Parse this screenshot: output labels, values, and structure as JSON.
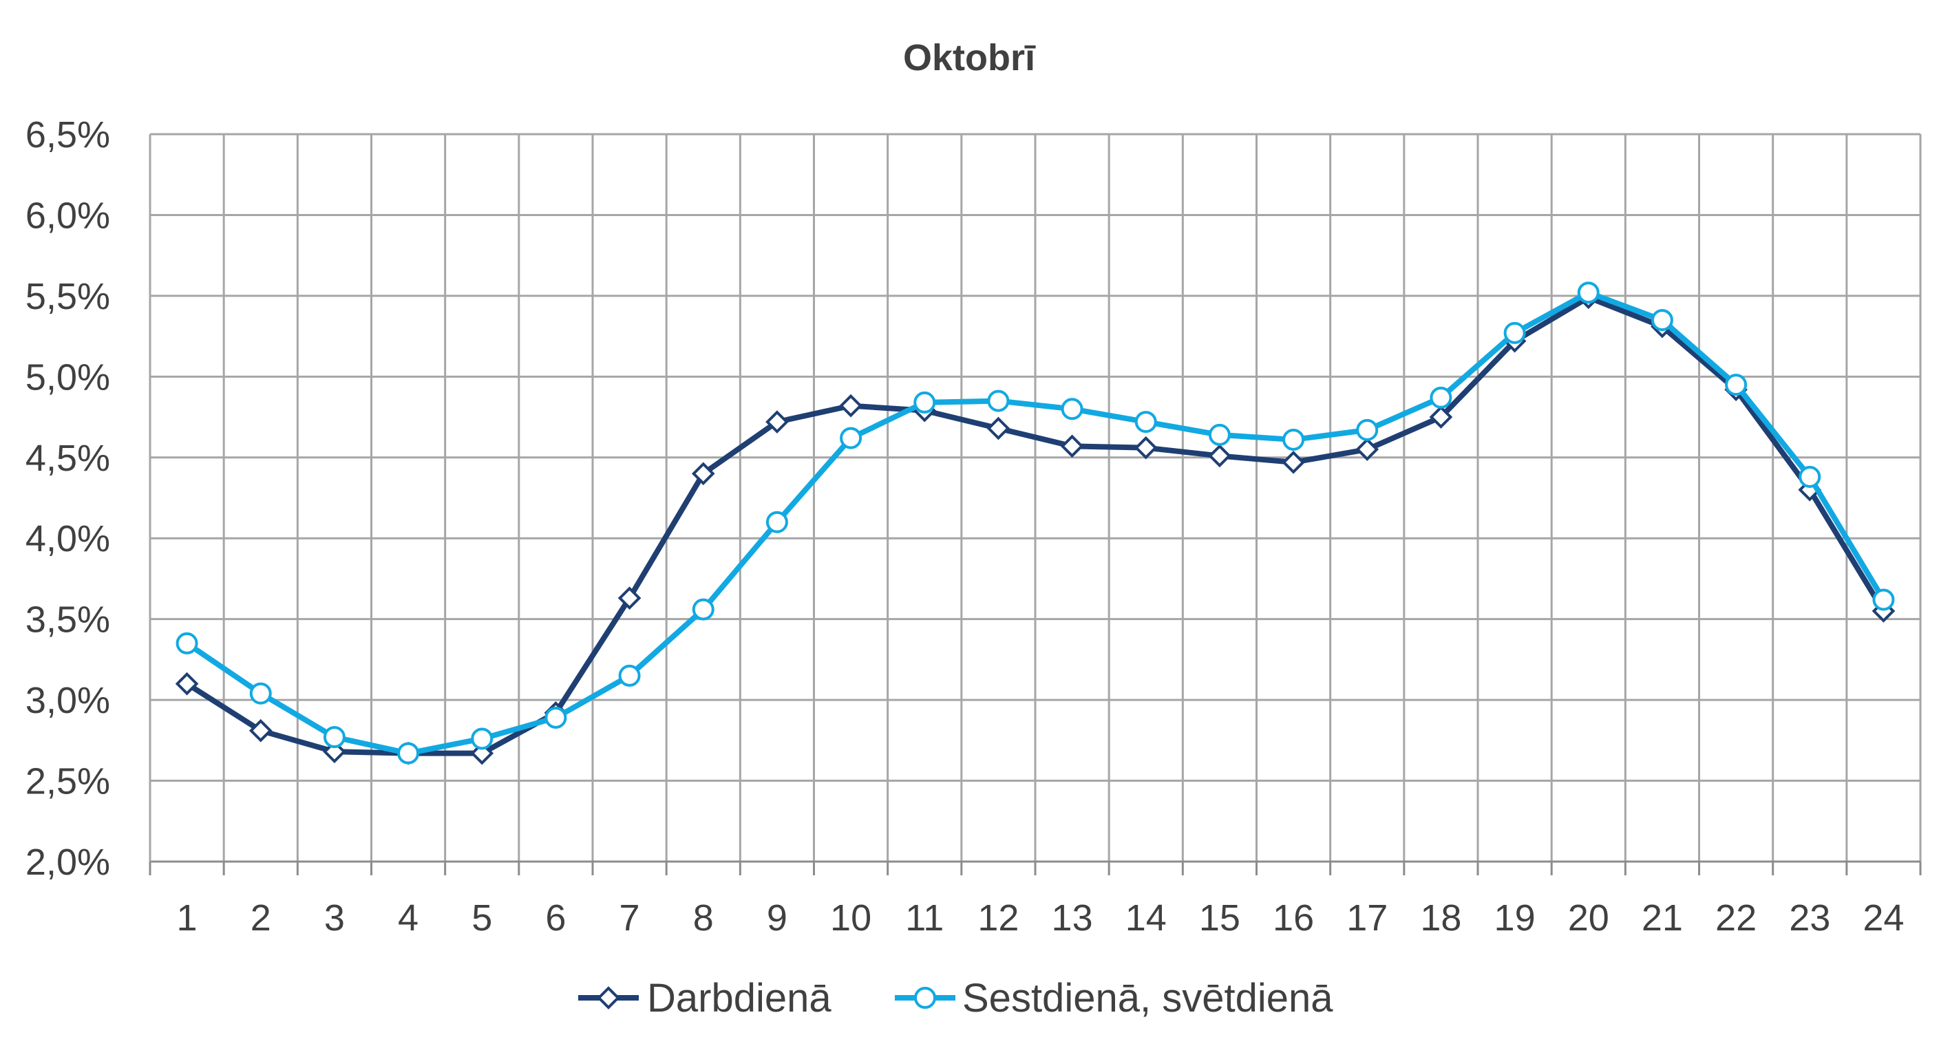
{
  "chart_data": {
    "type": "line",
    "title": "Oktobrī",
    "xlabel": "",
    "ylabel": "",
    "categories": [
      "1",
      "2",
      "3",
      "4",
      "5",
      "6",
      "7",
      "8",
      "9",
      "10",
      "11",
      "12",
      "13",
      "14",
      "15",
      "16",
      "17",
      "18",
      "19",
      "20",
      "21",
      "22",
      "23",
      "24"
    ],
    "ylim": [
      2.0,
      6.5
    ],
    "yticks": [
      2.0,
      2.5,
      3.0,
      3.5,
      4.0,
      4.5,
      5.0,
      5.5,
      6.0,
      6.5
    ],
    "ytick_labels": [
      "2,0%",
      "2,5%",
      "3,0%",
      "3,5%",
      "4,0%",
      "4,5%",
      "5,0%",
      "5,5%",
      "6,0%",
      "6,5%"
    ],
    "grid": true,
    "legend_position": "bottom",
    "series": [
      {
        "name": "Darbdienā",
        "color": "#1f3f73",
        "marker": "diamond",
        "values": [
          3.1,
          2.81,
          2.68,
          2.67,
          2.67,
          2.92,
          3.63,
          4.4,
          4.72,
          4.82,
          4.79,
          4.68,
          4.57,
          4.56,
          4.51,
          4.47,
          4.55,
          4.75,
          5.22,
          5.49,
          5.31,
          4.92,
          4.3,
          3.55
        ]
      },
      {
        "name": "Sestdienā, svētdienā",
        "color": "#12a9e2",
        "marker": "circle",
        "values": [
          3.35,
          3.04,
          2.77,
          2.67,
          2.76,
          2.89,
          3.15,
          3.56,
          4.1,
          4.62,
          4.84,
          4.85,
          4.8,
          4.72,
          4.64,
          4.61,
          4.67,
          4.87,
          5.27,
          5.52,
          5.35,
          4.95,
          4.38,
          3.62
        ]
      }
    ]
  }
}
